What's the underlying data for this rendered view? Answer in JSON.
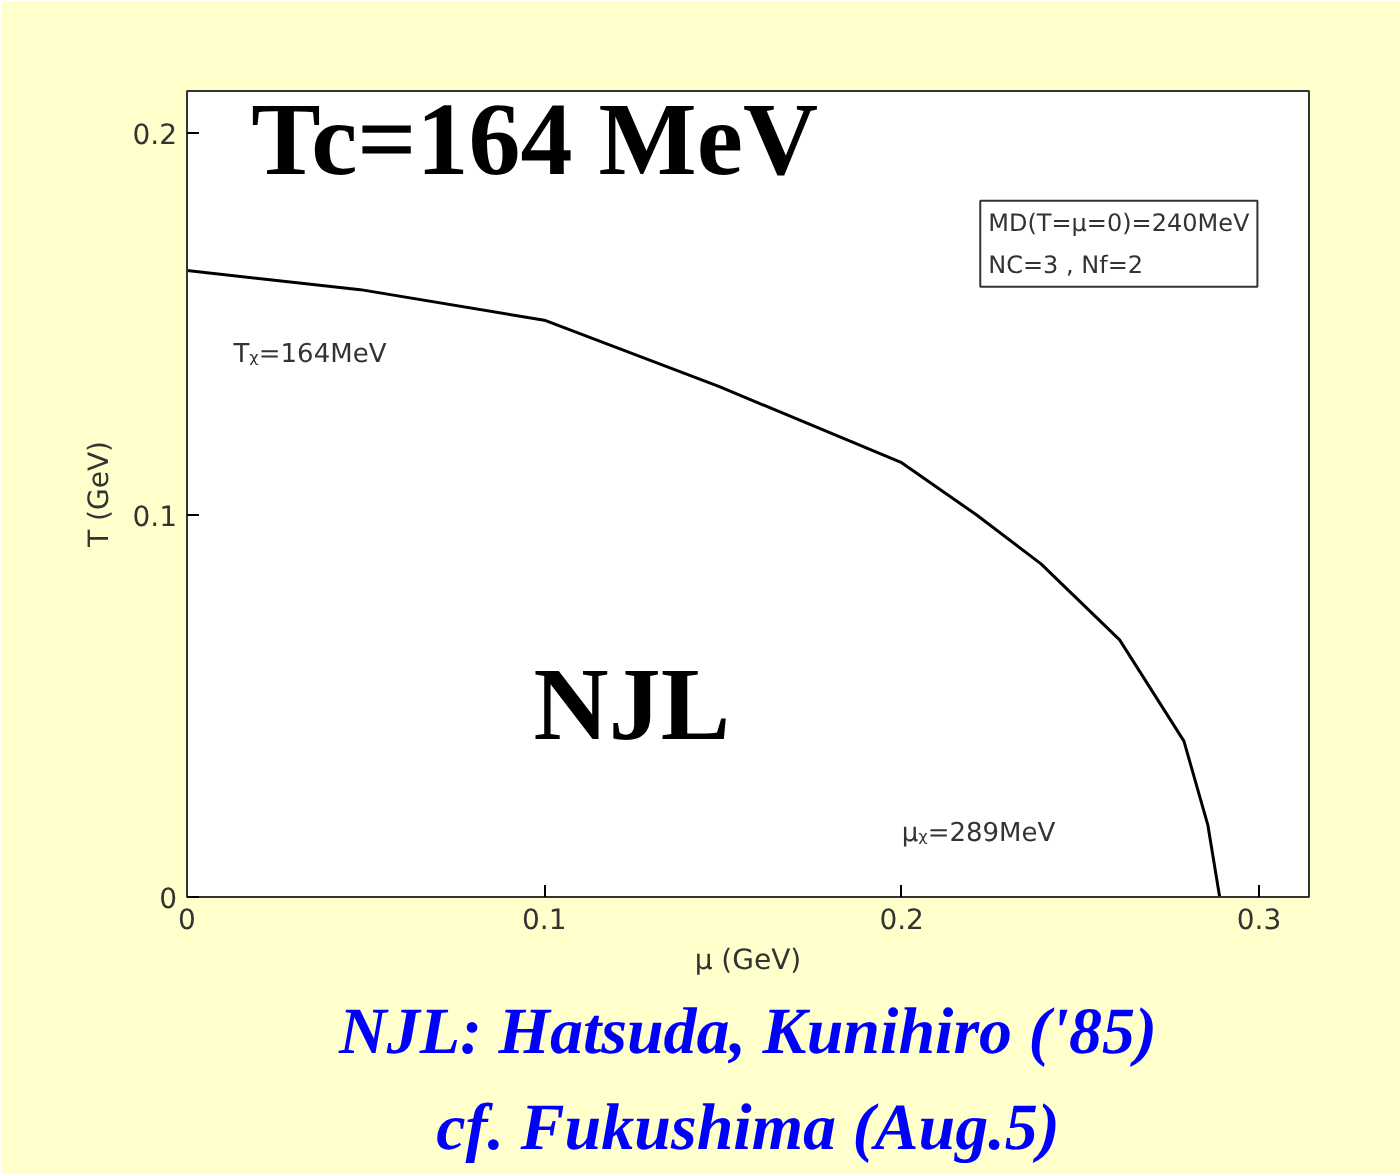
{
  "chart_data": {
    "type": "line",
    "xlabel": "μ (GeV)",
    "ylabel": "T (GeV)",
    "x": [
      0,
      0.0485,
      0.1,
      0.149,
      0.2,
      0.221,
      0.239,
      0.261,
      0.279,
      0.2857,
      0.289
    ],
    "series": [
      {
        "color": "#000000",
        "values": [
          0.164,
          0.159,
          0.151,
          0.1336,
          0.1137,
          0.1,
          0.0872,
          0.0673,
          0.0408,
          0.0188,
          0
        ]
      }
    ],
    "xlim": [
      0,
      0.314
    ],
    "ylim": [
      0,
      0.211
    ],
    "xticks": [
      0,
      0.1,
      0.2,
      0.3
    ],
    "yticks": [
      0,
      0.1,
      0.2
    ],
    "grid": false,
    "marker": "none",
    "line_style": "solid",
    "annotations": [
      "Tc=164 MeV",
      "NJL",
      "Tᵪ=164MeV",
      "MD(T=μ=0)=240MeV",
      "NC=3 , Nf=2",
      "μᵪ=289MeV",
      "NJL: Hatsuda, Kunihiro ('85)",
      "cf. Fukushima (Aug.5)"
    ]
  }
}
